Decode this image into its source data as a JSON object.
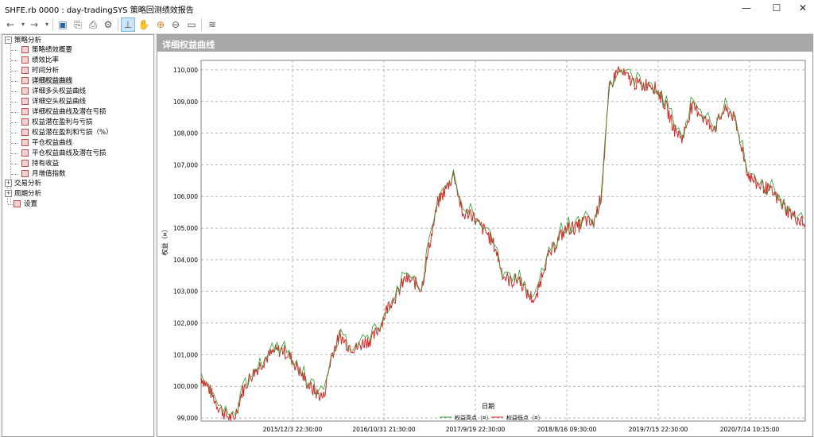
{
  "window": {
    "title": "SHFE.rb 0000 : day-tradingSYS 策略回测绩效报告",
    "min_icon": "minimize-icon",
    "max_icon": "maximize-icon",
    "close_icon": "close-icon"
  },
  "toolbar": {
    "icons": [
      "back-icon",
      "dropdown-icon",
      "forward-icon",
      "dropdown-icon",
      "save-icon",
      "export-icon",
      "print-icon",
      "settings-icon",
      "crosshair-icon",
      "hand-pan-icon",
      "zoom-in-icon",
      "zoom-out-icon",
      "zoom-reset-icon",
      "chart-style-icon"
    ]
  },
  "tree": {
    "groups": [
      {
        "label": "策略分析",
        "expanded": true,
        "items": [
          "策略绩效概要",
          "绩效比率",
          "时间分析",
          "详细权益曲线",
          "详细多头权益曲线",
          "详细空头权益曲线",
          "详细权益曲线及潜在亏损",
          "权益潜在盈利与亏损",
          "权益潜在盈利和亏损（%）",
          "平仓权益曲线",
          "平仓权益曲线及潜在亏损",
          "持有收益",
          "月增值指数"
        ]
      },
      {
        "label": "交易分析",
        "expanded": false,
        "items": []
      },
      {
        "label": "周期分析",
        "expanded": false,
        "items": []
      }
    ],
    "leaf": "设置",
    "selected": "详细权益曲线"
  },
  "panel": {
    "header": "详细权益曲线"
  },
  "colors": {
    "high": "#2ca02c",
    "low": "#d62728",
    "header": "#a8a8a8"
  },
  "chart_data": {
    "type": "line",
    "xlabel": "日期",
    "ylabel": "权益（¤）",
    "ylim": [
      98900,
      110300
    ],
    "yticks": [
      99000,
      100000,
      101000,
      102000,
      103000,
      104000,
      105000,
      106000,
      107000,
      108000,
      109000,
      110000
    ],
    "ytick_labels": [
      "99,000",
      "100,000",
      "101,000",
      "102,000",
      "103,000",
      "104,000",
      "105,000",
      "106,000",
      "107,000",
      "108,000",
      "109,000",
      "110,000"
    ],
    "xticks": [
      "2015/12/3 22:30:00",
      "2016/10/31 21:30:00",
      "2017/9/19 22:30:00",
      "2018/8/16 09:30:00",
      "2019/7/15 22:30:00",
      "2020/7/14 10:15:00"
    ],
    "grid": true,
    "legend_position": "bottom-center",
    "series": [
      {
        "name": "权益高点（¤）",
        "color": "#2ca02c"
      },
      {
        "name": "权益低点（¤）",
        "color": "#d62728"
      }
    ],
    "x": [
      "2015-01",
      "2015-02",
      "2015-03",
      "2015-04",
      "2015-05",
      "2015-06",
      "2015-07",
      "2015-08",
      "2015-09",
      "2015-10",
      "2015-11",
      "2015-12",
      "2016-01",
      "2016-02",
      "2016-03",
      "2016-04",
      "2016-05",
      "2016-06",
      "2016-07",
      "2016-08",
      "2016-09",
      "2016-10",
      "2016-11",
      "2016-12",
      "2017-01",
      "2017-02",
      "2017-03",
      "2017-04",
      "2017-05",
      "2017-06",
      "2017-07",
      "2017-08",
      "2017-09",
      "2017-10",
      "2017-11",
      "2017-12",
      "2018-01",
      "2018-02",
      "2018-03",
      "2018-04",
      "2018-05",
      "2018-06",
      "2018-07",
      "2018-08",
      "2018-09",
      "2018-10",
      "2018-11",
      "2018-12",
      "2019-01",
      "2019-02",
      "2019-03",
      "2019-04",
      "2019-05",
      "2019-06",
      "2019-07",
      "2019-08",
      "2019-09",
      "2019-10",
      "2019-11",
      "2019-12",
      "2020-01",
      "2020-02",
      "2020-03",
      "2020-04",
      "2020-05",
      "2020-06",
      "2020-07",
      "2020-08",
      "2020-09",
      "2020-10",
      "2020-11",
      "2020-12",
      "2021-01",
      "2021-02",
      "2021-03"
    ],
    "values": [
      100300,
      99900,
      99400,
      99100,
      98950,
      99800,
      100300,
      100600,
      100900,
      101100,
      101150,
      100900,
      100500,
      100100,
      99800,
      99650,
      101000,
      101600,
      101300,
      101200,
      101400,
      101500,
      101950,
      102600,
      102900,
      103400,
      103300,
      103100,
      104500,
      105800,
      106250,
      106700,
      105400,
      105500,
      105100,
      104850,
      104400,
      103500,
      103300,
      103400,
      102900,
      102700,
      103800,
      104300,
      104750,
      105000,
      105000,
      105250,
      105100,
      106000,
      109400,
      110000,
      109800,
      109600,
      109500,
      109600,
      109300,
      108800,
      108100,
      107850,
      108800,
      108700,
      108300,
      108200,
      108700,
      108650,
      107800,
      106700,
      106400,
      106300,
      106100,
      105800,
      105500,
      105300,
      105100
    ]
  }
}
